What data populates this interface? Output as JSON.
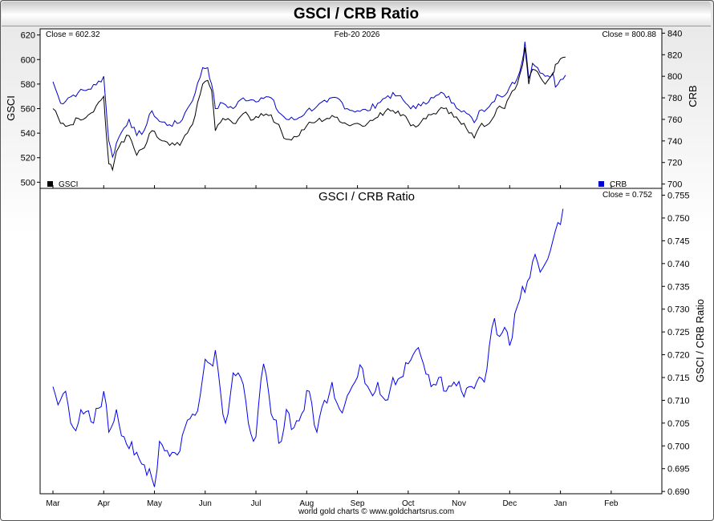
{
  "window": {
    "title": "GSCI / CRB Ratio",
    "footer": "world gold charts © www.goldchartsrus.com"
  },
  "top_panel": {
    "close_left": "Close = 602.32",
    "date": "Feb-20  2026",
    "close_right": "Close = 800.88",
    "left_axis_label": "GSCI",
    "right_axis_label": "CRB",
    "legend_left": "GSCI",
    "legend_right": "CRB"
  },
  "bottom_panel": {
    "title": "GSCI  /  CRB  Ratio",
    "close": "Close = 0.752",
    "axis_label": "GSCI / CRB Ratio"
  },
  "colors": {
    "gsci": "#000000",
    "crb": "#0000cc",
    "ratio": "#0000ee"
  },
  "chart_data": [
    {
      "type": "line",
      "x_ticks": [
        "Mar",
        "Apr",
        "May",
        "Jun",
        "Jul",
        "Aug",
        "Sep",
        "Oct",
        "Nov",
        "Dec",
        "Jan",
        "Feb"
      ],
      "left_axis": {
        "label": "GSCI",
        "ylim": [
          495,
          625
        ],
        "ticks": [
          500,
          520,
          540,
          560,
          580,
          600,
          620
        ]
      },
      "right_axis": {
        "label": "CRB",
        "ylim": [
          696,
          844
        ],
        "ticks": [
          700,
          720,
          740,
          760,
          780,
          800,
          820,
          840
        ]
      },
      "series": [
        {
          "name": "GSCI",
          "axis": "left",
          "anchors": [
            [
              0,
              560
            ],
            [
              0.3,
              548
            ],
            [
              0.6,
              546
            ],
            [
              1,
              552
            ],
            [
              1.4,
              555
            ],
            [
              1.7,
              562
            ],
            [
              2,
              570
            ],
            [
              2.1,
              540
            ],
            [
              2.2,
              515
            ],
            [
              2.35,
              510
            ],
            [
              2.5,
              525
            ],
            [
              2.7,
              533
            ],
            [
              3,
              538
            ],
            [
              3.3,
              522
            ],
            [
              3.6,
              528
            ],
            [
              3.9,
              542
            ],
            [
              4.2,
              535
            ],
            [
              4.6,
              530
            ],
            [
              5,
              530
            ],
            [
              5.3,
              540
            ],
            [
              5.6,
              554
            ],
            [
              5.9,
              580
            ],
            [
              6.1,
              583
            ],
            [
              6.25,
              575
            ],
            [
              6.4,
              542
            ],
            [
              6.7,
              552
            ],
            [
              7.1,
              548
            ],
            [
              7.5,
              556
            ],
            [
              7.9,
              551
            ],
            [
              8.2,
              556
            ],
            [
              8.6,
              555
            ],
            [
              8.8,
              548
            ],
            [
              9.2,
              535
            ],
            [
              9.6,
              537
            ],
            [
              10,
              546
            ],
            [
              10.4,
              550
            ],
            [
              10.8,
              552
            ],
            [
              11.2,
              553
            ],
            [
              11.6,
              547
            ],
            [
              12,
              548
            ],
            [
              12.4,
              548
            ],
            [
              12.8,
              553
            ],
            [
              13.2,
              560
            ],
            [
              13.6,
              558
            ],
            [
              14,
              550
            ],
            [
              14.3,
              545
            ],
            [
              14.6,
              552
            ],
            [
              15,
              556
            ],
            [
              15.4,
              560
            ],
            [
              15.8,
              553
            ],
            [
              16.2,
              548
            ],
            [
              16.6,
              536
            ],
            [
              16.8,
              545
            ],
            [
              17.2,
              548
            ],
            [
              17.5,
              560
            ],
            [
              17.8,
              560
            ],
            [
              18,
              570
            ],
            [
              18.3,
              580
            ],
            [
              18.5,
              595
            ],
            [
              18.6,
              610
            ],
            [
              18.75,
              580
            ],
            [
              18.9,
              592
            ],
            [
              19.1,
              590
            ],
            [
              19.4,
              580
            ],
            [
              19.7,
              588
            ],
            [
              19.8,
              596
            ],
            [
              20.2,
              602
            ]
          ]
        },
        {
          "name": "CRB",
          "axis": "right",
          "anchors": [
            [
              0,
              795
            ],
            [
              0.3,
              775
            ],
            [
              0.6,
              780
            ],
            [
              1,
              785
            ],
            [
              1.4,
              788
            ],
            [
              1.7,
              792
            ],
            [
              2,
              800
            ],
            [
              2.1,
              770
            ],
            [
              2.2,
              740
            ],
            [
              2.35,
              725
            ],
            [
              2.5,
              738
            ],
            [
              2.7,
              748
            ],
            [
              3,
              760
            ],
            [
              3.3,
              745
            ],
            [
              3.6,
              750
            ],
            [
              3.9,
              768
            ],
            [
              4.2,
              758
            ],
            [
              4.6,
              755
            ],
            [
              5,
              757
            ],
            [
              5.3,
              770
            ],
            [
              5.6,
              784
            ],
            [
              5.9,
              808
            ],
            [
              6.1,
              808
            ],
            [
              6.25,
              793
            ],
            [
              6.4,
              770
            ],
            [
              6.7,
              775
            ],
            [
              7.1,
              770
            ],
            [
              7.5,
              780
            ],
            [
              7.9,
              778
            ],
            [
              8.2,
              780
            ],
            [
              8.6,
              780
            ],
            [
              8.8,
              770
            ],
            [
              9.2,
              760
            ],
            [
              9.6,
              760
            ],
            [
              10,
              768
            ],
            [
              10.4,
              772
            ],
            [
              10.8,
              776
            ],
            [
              11.2,
              780
            ],
            [
              11.6,
              770
            ],
            [
              12,
              768
            ],
            [
              12.4,
              768
            ],
            [
              12.8,
              775
            ],
            [
              13.2,
              782
            ],
            [
              13.6,
              782
            ],
            [
              14,
              773
            ],
            [
              14.3,
              770
            ],
            [
              14.6,
              776
            ],
            [
              15,
              780
            ],
            [
              15.4,
              784
            ],
            [
              15.8,
              775
            ],
            [
              16.2,
              768
            ],
            [
              16.6,
              757
            ],
            [
              16.8,
              768
            ],
            [
              17.2,
              772
            ],
            [
              17.5,
              783
            ],
            [
              17.8,
              782
            ],
            [
              18,
              790
            ],
            [
              18.3,
              798
            ],
            [
              18.5,
              815
            ],
            [
              18.6,
              832
            ],
            [
              18.75,
              798
            ],
            [
              18.9,
              812
            ],
            [
              19.1,
              808
            ],
            [
              19.4,
              800
            ],
            [
              19.7,
              803
            ],
            [
              19.8,
              790
            ],
            [
              20.2,
              801
            ]
          ]
        }
      ]
    },
    {
      "type": "line",
      "x_ticks": [
        "Mar",
        "Apr",
        "May",
        "Jun",
        "Jul",
        "Aug",
        "Sep",
        "Oct",
        "Nov",
        "Dec",
        "Jan",
        "Feb"
      ],
      "y_axis": {
        "label": "GSCI / CRB Ratio",
        "ylim": [
          0.6895,
          0.7565
        ],
        "ticks": [
          0.69,
          0.695,
          0.7,
          0.705,
          0.71,
          0.715,
          0.72,
          0.725,
          0.73,
          0.735,
          0.74,
          0.745,
          0.75,
          0.755
        ]
      },
      "series": [
        {
          "name": "GSCI / CRB Ratio",
          "anchors": [
            [
              0,
              0.713
            ],
            [
              0.2,
              0.709
            ],
            [
              0.5,
              0.712
            ],
            [
              0.8,
              0.704
            ],
            [
              1.2,
              0.707
            ],
            [
              1.6,
              0.705
            ],
            [
              2,
              0.712
            ],
            [
              2.2,
              0.703
            ],
            [
              2.5,
              0.708
            ],
            [
              2.8,
              0.702
            ],
            [
              3.2,
              0.698
            ],
            [
              3.5,
              0.696
            ],
            [
              3.8,
              0.695
            ],
            [
              4,
              0.691
            ],
            [
              4.2,
              0.701
            ],
            [
              4.5,
              0.699
            ],
            [
              4.9,
              0.698
            ],
            [
              5.2,
              0.704
            ],
            [
              5.5,
              0.707
            ],
            [
              5.8,
              0.711
            ],
            [
              6,
              0.719
            ],
            [
              6.2,
              0.718
            ],
            [
              6.4,
              0.721
            ],
            [
              6.6,
              0.712
            ],
            [
              6.8,
              0.705
            ],
            [
              7.1,
              0.716
            ],
            [
              7.4,
              0.715
            ],
            [
              7.7,
              0.705
            ],
            [
              8,
              0.702
            ],
            [
              8.3,
              0.718
            ],
            [
              8.6,
              0.707
            ],
            [
              9,
              0.701
            ],
            [
              9.2,
              0.708
            ],
            [
              9.5,
              0.704
            ],
            [
              9.8,
              0.707
            ],
            [
              10.1,
              0.712
            ],
            [
              10.4,
              0.703
            ],
            [
              10.7,
              0.71
            ],
            [
              11,
              0.714
            ],
            [
              11.3,
              0.708
            ],
            [
              11.6,
              0.711
            ],
            [
              11.9,
              0.714
            ],
            [
              12.2,
              0.717
            ],
            [
              12.5,
              0.712
            ],
            [
              12.8,
              0.714
            ],
            [
              13.1,
              0.71
            ],
            [
              13.4,
              0.715
            ],
            [
              13.7,
              0.715
            ],
            [
              14,
              0.718
            ],
            [
              14.3,
              0.721
            ],
            [
              14.6,
              0.718
            ],
            [
              14.9,
              0.713
            ],
            [
              15.2,
              0.715
            ],
            [
              15.5,
              0.712
            ],
            [
              15.8,
              0.714
            ],
            [
              16.1,
              0.712
            ],
            [
              16.4,
              0.713
            ],
            [
              16.7,
              0.714
            ],
            [
              17.0,
              0.714
            ],
            [
              17.2,
              0.722
            ],
            [
              17.4,
              0.728
            ],
            [
              17.6,
              0.724
            ],
            [
              17.8,
              0.726
            ],
            [
              18.0,
              0.722
            ],
            [
              18.2,
              0.729
            ],
            [
              18.5,
              0.735
            ],
            [
              18.8,
              0.737
            ],
            [
              19.0,
              0.742
            ],
            [
              19.3,
              0.739
            ],
            [
              19.5,
              0.741
            ],
            [
              19.7,
              0.745
            ],
            [
              19.9,
              0.749
            ],
            [
              20.1,
              0.752
            ]
          ]
        }
      ]
    }
  ]
}
